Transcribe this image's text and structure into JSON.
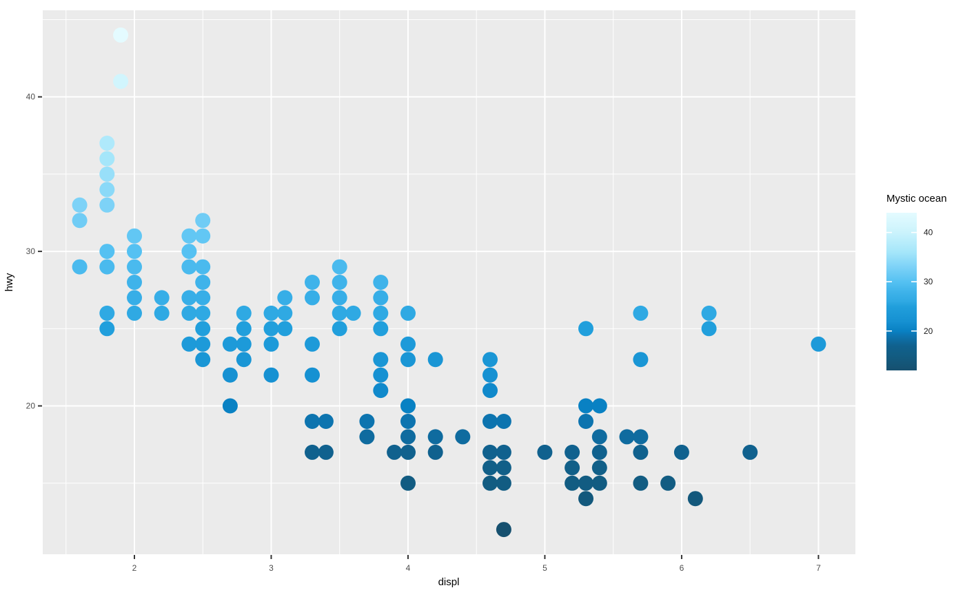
{
  "chart_data": {
    "type": "scatter",
    "title": "",
    "xlabel": "displ",
    "ylabel": "hwy",
    "x_ticks": [
      2,
      3,
      4,
      5,
      6,
      7
    ],
    "y_ticks": [
      20,
      30,
      40
    ],
    "x_minor_ticks": [
      1.5,
      2.5,
      3.5,
      4.5,
      5.5,
      6.5
    ],
    "y_minor_ticks": [
      15,
      25,
      35,
      45
    ],
    "x_range": [
      1.33,
      7.27
    ],
    "y_range": [
      10.4,
      45.6
    ],
    "grid": true,
    "style": {
      "panel_bg": "#EBEBEB",
      "grid_color": "#FFFFFF",
      "tick_color": "#333333",
      "tick_label_color": "#4D4D4D",
      "axis_title_color": "#000000",
      "legend_label_color": "#1A1A1A"
    },
    "points": [
      [
        1.6,
        29
      ],
      [
        1.6,
        32
      ],
      [
        1.6,
        33
      ],
      [
        1.8,
        25
      ],
      [
        1.8,
        26
      ],
      [
        1.8,
        29
      ],
      [
        1.8,
        30
      ],
      [
        1.8,
        33
      ],
      [
        1.8,
        34
      ],
      [
        1.8,
        35
      ],
      [
        1.8,
        36
      ],
      [
        1.8,
        37
      ],
      [
        1.9,
        41
      ],
      [
        1.9,
        44
      ],
      [
        2.0,
        26
      ],
      [
        2.0,
        27
      ],
      [
        2.0,
        28
      ],
      [
        2.0,
        29
      ],
      [
        2.0,
        30
      ],
      [
        2.0,
        31
      ],
      [
        2.2,
        26
      ],
      [
        2.2,
        27
      ],
      [
        2.4,
        24
      ],
      [
        2.4,
        26
      ],
      [
        2.4,
        27
      ],
      [
        2.4,
        29
      ],
      [
        2.4,
        30
      ],
      [
        2.4,
        31
      ],
      [
        2.5,
        23
      ],
      [
        2.5,
        24
      ],
      [
        2.5,
        25
      ],
      [
        2.5,
        26
      ],
      [
        2.5,
        27
      ],
      [
        2.5,
        28
      ],
      [
        2.5,
        29
      ],
      [
        2.5,
        31
      ],
      [
        2.5,
        32
      ],
      [
        2.7,
        20
      ],
      [
        2.7,
        22
      ],
      [
        2.7,
        24
      ],
      [
        2.8,
        23
      ],
      [
        2.8,
        24
      ],
      [
        2.8,
        25
      ],
      [
        2.8,
        26
      ],
      [
        3.0,
        22
      ],
      [
        3.0,
        24
      ],
      [
        3.0,
        25
      ],
      [
        3.0,
        26
      ],
      [
        3.1,
        25
      ],
      [
        3.1,
        26
      ],
      [
        3.1,
        27
      ],
      [
        3.3,
        17
      ],
      [
        3.3,
        19
      ],
      [
        3.3,
        22
      ],
      [
        3.3,
        24
      ],
      [
        3.3,
        27
      ],
      [
        3.3,
        28
      ],
      [
        3.4,
        17
      ],
      [
        3.4,
        19
      ],
      [
        3.5,
        25
      ],
      [
        3.5,
        26
      ],
      [
        3.5,
        27
      ],
      [
        3.5,
        28
      ],
      [
        3.5,
        29
      ],
      [
        3.6,
        26
      ],
      [
        3.7,
        18
      ],
      [
        3.7,
        19
      ],
      [
        3.8,
        21
      ],
      [
        3.8,
        22
      ],
      [
        3.8,
        23
      ],
      [
        3.8,
        25
      ],
      [
        3.8,
        26
      ],
      [
        3.8,
        27
      ],
      [
        3.8,
        28
      ],
      [
        3.9,
        17
      ],
      [
        4.0,
        15
      ],
      [
        4.0,
        17
      ],
      [
        4.0,
        18
      ],
      [
        4.0,
        19
      ],
      [
        4.0,
        20
      ],
      [
        4.0,
        23
      ],
      [
        4.0,
        24
      ],
      [
        4.0,
        26
      ],
      [
        4.2,
        17
      ],
      [
        4.2,
        18
      ],
      [
        4.2,
        23
      ],
      [
        4.4,
        18
      ],
      [
        4.6,
        15
      ],
      [
        4.6,
        16
      ],
      [
        4.6,
        17
      ],
      [
        4.6,
        19
      ],
      [
        4.6,
        21
      ],
      [
        4.6,
        22
      ],
      [
        4.6,
        23
      ],
      [
        4.7,
        12
      ],
      [
        4.7,
        15
      ],
      [
        4.7,
        16
      ],
      [
        4.7,
        17
      ],
      [
        4.7,
        19
      ],
      [
        5.0,
        17
      ],
      [
        5.2,
        15
      ],
      [
        5.2,
        16
      ],
      [
        5.2,
        17
      ],
      [
        5.3,
        14
      ],
      [
        5.3,
        15
      ],
      [
        5.3,
        19
      ],
      [
        5.3,
        20
      ],
      [
        5.3,
        25
      ],
      [
        5.4,
        15
      ],
      [
        5.4,
        16
      ],
      [
        5.4,
        17
      ],
      [
        5.4,
        18
      ],
      [
        5.4,
        20
      ],
      [
        5.6,
        18
      ],
      [
        5.7,
        15
      ],
      [
        5.7,
        17
      ],
      [
        5.7,
        18
      ],
      [
        5.7,
        23
      ],
      [
        5.7,
        26
      ],
      [
        5.9,
        15
      ],
      [
        6.0,
        17
      ],
      [
        6.1,
        14
      ],
      [
        6.2,
        25
      ],
      [
        6.2,
        26
      ],
      [
        6.5,
        17
      ],
      [
        7.0,
        24
      ]
    ],
    "color_scale": {
      "by": "hwy",
      "stops": [
        {
          "value": 12,
          "color": "#16506F"
        },
        {
          "value": 15,
          "color": "#125C82"
        },
        {
          "value": 17,
          "color": "#10618E"
        },
        {
          "value": 19,
          "color": "#0D74AF"
        },
        {
          "value": 20,
          "color": "#0981C3"
        },
        {
          "value": 22,
          "color": "#1691D2"
        },
        {
          "value": 25,
          "color": "#219FDC"
        },
        {
          "value": 26,
          "color": "#2FA9E3"
        },
        {
          "value": 28,
          "color": "#3FB3EA"
        },
        {
          "value": 30,
          "color": "#55C1F2"
        },
        {
          "value": 33,
          "color": "#7DD2F7"
        },
        {
          "value": 36,
          "color": "#A5E6FA"
        },
        {
          "value": 40,
          "color": "#CBF3FC"
        },
        {
          "value": 44,
          "color": "#E4FBFF"
        }
      ]
    },
    "legend": {
      "title": "Mystic ocean",
      "position": "right",
      "limits": [
        12,
        44
      ],
      "ticks": [
        40,
        30,
        20
      ]
    }
  }
}
